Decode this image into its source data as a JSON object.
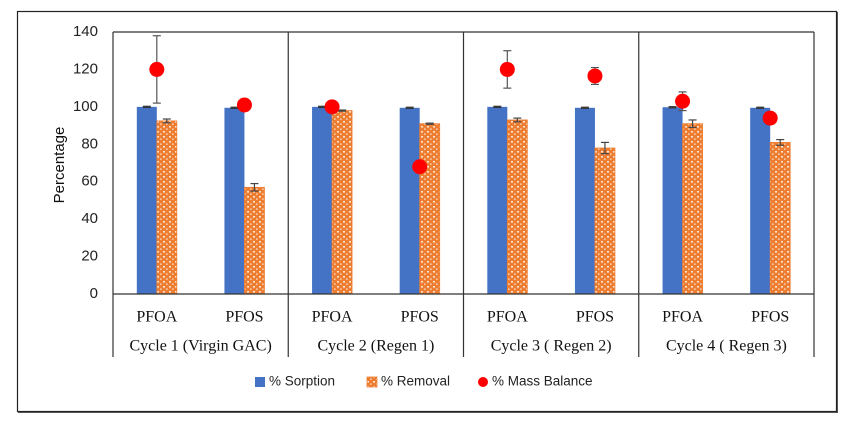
{
  "chart_data": {
    "type": "bar",
    "title": "",
    "xlabel": "",
    "ylabel": "Percentage",
    "ylim": [
      0,
      140
    ],
    "yticks": [
      0,
      20,
      40,
      60,
      80,
      100,
      120,
      140
    ],
    "grid": false,
    "legend_position": "bottom-center",
    "groups": [
      {
        "label": "Cycle 1 (Virgin GAC)",
        "categories": [
          "PFOA",
          "PFOS"
        ]
      },
      {
        "label": "Cycle 2 (Regen 1)",
        "categories": [
          "PFOA",
          "PFOS"
        ]
      },
      {
        "label": "Cycle 3 ( Regen 2)",
        "categories": [
          "PFOA",
          "PFOS"
        ]
      },
      {
        "label": "Cycle 4 ( Regen 3)",
        "categories": [
          "PFOA",
          "PFOS"
        ]
      }
    ],
    "categories": [
      "PFOA",
      "PFOS",
      "PFOA",
      "PFOS",
      "PFOA",
      "PFOS",
      "PFOA",
      "PFOS"
    ],
    "series": [
      {
        "name": "% Sorption",
        "kind": "bar",
        "color": "#4472C4",
        "values": [
          100,
          99.5,
          100,
          99.5,
          100,
          99.5,
          99.8,
          99.5
        ],
        "errors": [
          0.3,
          0.3,
          0.3,
          0.3,
          0.3,
          0.3,
          0.3,
          0.3
        ]
      },
      {
        "name": "% Removal",
        "kind": "bar-pattern",
        "color": "#ED7D31",
        "values": [
          92.5,
          57,
          98,
          91,
          93,
          78,
          91,
          81
        ],
        "errors": [
          1,
          2,
          0.3,
          0.3,
          1,
          3,
          2,
          1.5
        ]
      },
      {
        "name": "% Mass Balance",
        "kind": "point",
        "color": "#FF0000",
        "values": [
          120,
          101,
          100,
          68,
          120,
          116.5,
          103,
          94
        ],
        "errors": [
          18,
          0,
          0,
          0,
          10,
          4.5,
          5,
          0
        ]
      }
    ]
  }
}
